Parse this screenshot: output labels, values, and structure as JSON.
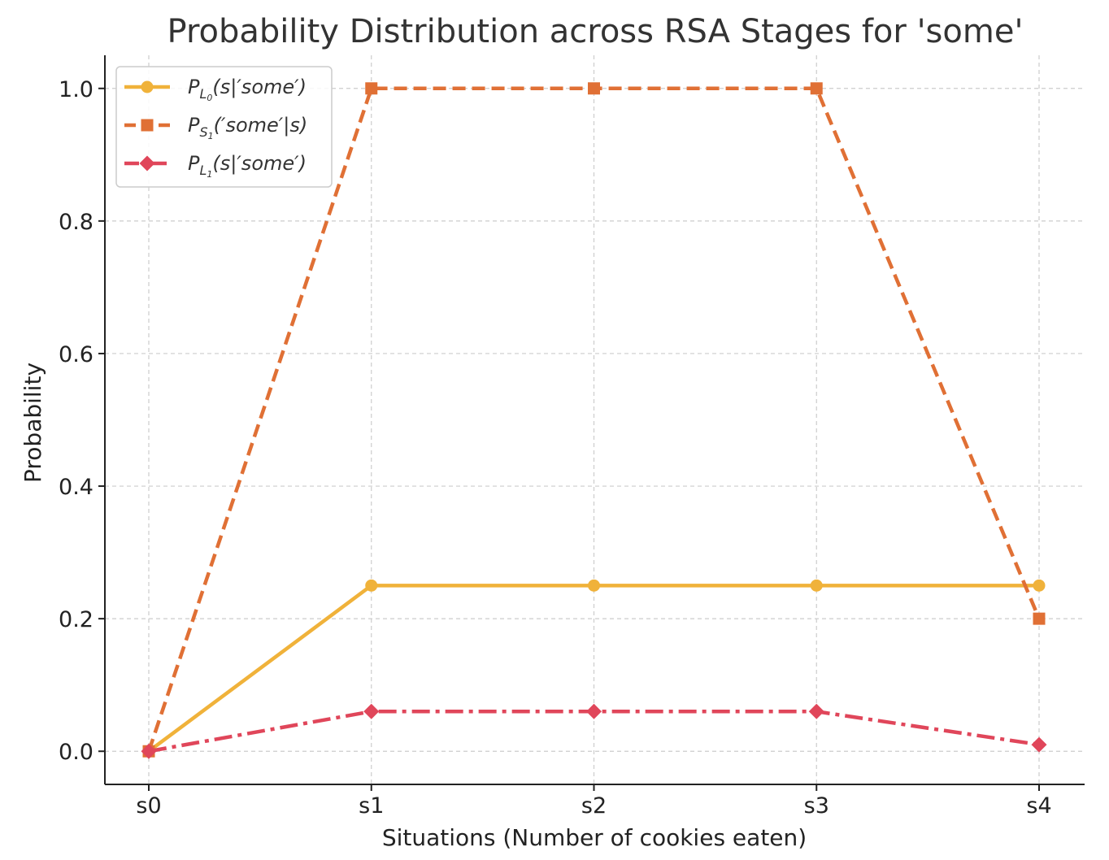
{
  "chart_data": {
    "type": "line",
    "title": "Probability Distribution across RSA Stages for 'some'",
    "xlabel": "Situations (Number of cookies eaten)",
    "ylabel": "Probability",
    "categories": [
      "s0",
      "s1",
      "s2",
      "s3",
      "s4"
    ],
    "ylim": [
      -0.05,
      1.05
    ],
    "yticks": [
      "0.0",
      "0.2",
      "0.4",
      "0.6",
      "0.8",
      "1.0"
    ],
    "ytick_values": [
      0.0,
      0.2,
      0.4,
      0.6,
      0.8,
      1.0
    ],
    "grid": true,
    "legend_position": "top-left",
    "series": [
      {
        "name": "P_{L_0}(s|'some')",
        "legend": {
          "base": "P",
          "sub": "L",
          "subsub": "0",
          "rest": "(s|′some′)"
        },
        "values": [
          0.0,
          0.25,
          0.25,
          0.25,
          0.25
        ],
        "color": "#f0b23a",
        "line_style": "solid",
        "marker": "circle"
      },
      {
        "name": "P_{S_1}('some'|s)",
        "legend": {
          "base": "P",
          "sub": "S",
          "subsub": "1",
          "rest": "(′some′|s)"
        },
        "values": [
          0.0,
          1.0,
          1.0,
          1.0,
          0.2
        ],
        "color": "#e07035",
        "line_style": "dashed",
        "marker": "square"
      },
      {
        "name": "P_{L_1}(s|'some')",
        "legend": {
          "base": "P",
          "sub": "L",
          "subsub": "1",
          "rest": "(s|′some′)"
        },
        "values": [
          0.0,
          0.06,
          0.06,
          0.06,
          0.01
        ],
        "color": "#e0465a",
        "line_style": "dashdot",
        "marker": "diamond"
      }
    ]
  }
}
